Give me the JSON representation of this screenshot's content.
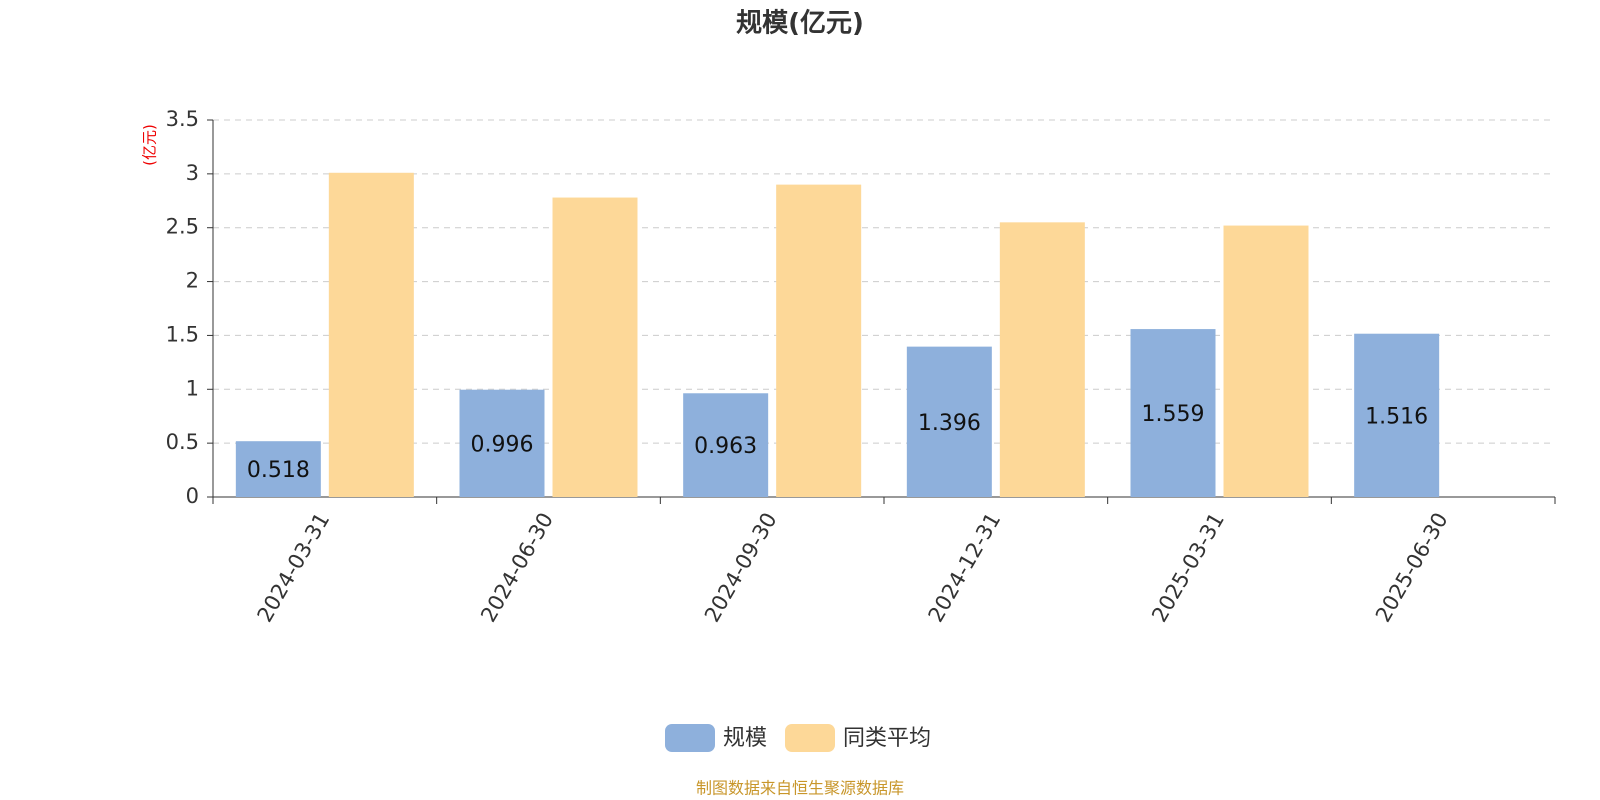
{
  "chart_data": {
    "type": "bar",
    "title": "规模(亿元)",
    "y_unit": "(亿元)",
    "source": "制图数据来自恒生聚源数据库",
    "categories": [
      "2024-03-31",
      "2024-06-30",
      "2024-09-30",
      "2024-12-31",
      "2025-03-31",
      "2025-06-30"
    ],
    "series": [
      {
        "name": "规模",
        "color": "#8eb0dc",
        "data_labels": true,
        "values": [
          0.518,
          0.996,
          0.963,
          1.396,
          1.559,
          1.516
        ]
      },
      {
        "name": "同类平均",
        "color": "#fdd898",
        "data_labels": false,
        "values": [
          3.01,
          2.78,
          2.9,
          2.55,
          2.52,
          null
        ]
      }
    ],
    "ylim": [
      0,
      3.5
    ],
    "yticks": [
      0,
      0.5,
      1,
      1.5,
      2,
      2.5,
      3,
      3.5
    ],
    "grid": true
  }
}
